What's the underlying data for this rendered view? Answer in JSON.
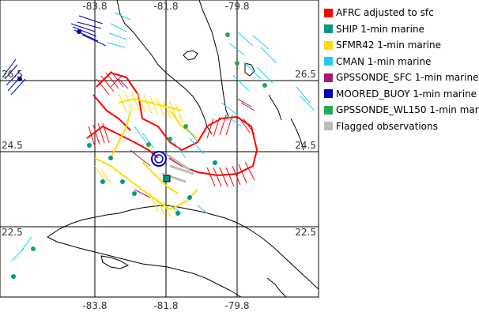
{
  "map": {
    "lon_ticks": [
      "-83.8",
      "-81.8",
      "-79.8"
    ],
    "lat_ticks": [
      "26.5",
      "24.5",
      "22.5"
    ]
  },
  "legend": [
    {
      "label": "AFRC adjusted to sfc",
      "color": "#ff0000"
    },
    {
      "label": "SHIP 1-min marine",
      "color": "#009980"
    },
    {
      "label": "SFMR42 1-min marine",
      "color": "#ffdd00"
    },
    {
      "label": "CMAN 1-min marine",
      "color": "#22ccee"
    },
    {
      "label": "GPSSONDE_SFC 1-min marine",
      "color": "#aa1a6a"
    },
    {
      "label": "MOORED_BUOY 1-min marine",
      "color": "#0000bb"
    },
    {
      "label": "GPSSONDE_WL150 1-min mar",
      "color": "#22aa55"
    },
    {
      "label": "Flagged observations",
      "color": "#bbbbbb"
    }
  ]
}
